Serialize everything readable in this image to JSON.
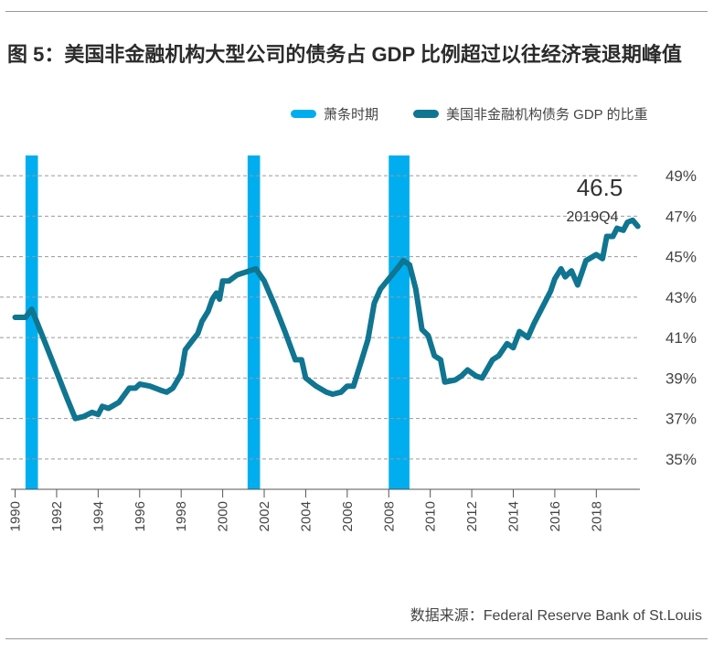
{
  "figure": {
    "title": "图 5：美国非金融机构大型公司的债务占 GDP 比例超过以往经济衰退期峰值",
    "source": "数据来源：Federal Reserve Bank of St.Louis"
  },
  "legend": [
    {
      "label": "萧条时期",
      "color": "#00aeef"
    },
    {
      "label": "美国非金融机构债务 GDP 的比重",
      "color": "#0f7590"
    }
  ],
  "annotation": {
    "value": "46.5",
    "period": "2019Q4"
  },
  "chart_data": {
    "type": "line",
    "title": "图 5：美国非金融机构大型公司的债务占 GDP 比例超过以往经济衰退期峰值",
    "xlabel": "",
    "ylabel": "",
    "xlim": [
      1989.8,
      2020.1
    ],
    "ylim": [
      33.5,
      50
    ],
    "x_ticks": [
      1990,
      1992,
      1994,
      1996,
      1998,
      2000,
      2002,
      2004,
      2006,
      2008,
      2010,
      2012,
      2014,
      2016,
      2018
    ],
    "x_tick_labels": [
      "1990",
      "1992",
      "1994",
      "1996",
      "1998",
      "2000",
      "2002",
      "2004",
      "2006",
      "2008",
      "2010",
      "2012",
      "2014",
      "2016",
      "2018"
    ],
    "y_ticks": [
      35,
      37,
      39,
      41,
      43,
      45,
      47,
      49
    ],
    "y_tick_labels": [
      "35%",
      "37%",
      "39%",
      "41%",
      "43%",
      "45%",
      "47%",
      "49%"
    ],
    "grid": "horizontal dashed",
    "recessions": [
      {
        "start": 1990.5,
        "end": 1991.1
      },
      {
        "start": 2001.2,
        "end": 2001.8
      },
      {
        "start": 2008.0,
        "end": 2009.0
      }
    ],
    "series": [
      {
        "name": "美国非金融机构债务 GDP 的比重",
        "color": "#0f7590",
        "points": [
          [
            1990.0,
            42.0
          ],
          [
            1990.5,
            42.0
          ],
          [
            1990.8,
            42.4
          ],
          [
            1991.0,
            41.9
          ],
          [
            1991.5,
            40.6
          ],
          [
            1992.0,
            39.3
          ],
          [
            1992.5,
            38.0
          ],
          [
            1992.9,
            37.0
          ],
          [
            1993.3,
            37.1
          ],
          [
            1993.7,
            37.3
          ],
          [
            1994.0,
            37.2
          ],
          [
            1994.2,
            37.6
          ],
          [
            1994.5,
            37.5
          ],
          [
            1995.0,
            37.8
          ],
          [
            1995.5,
            38.5
          ],
          [
            1995.8,
            38.5
          ],
          [
            1996.0,
            38.7
          ],
          [
            1996.5,
            38.6
          ],
          [
            1997.0,
            38.4
          ],
          [
            1997.3,
            38.3
          ],
          [
            1997.6,
            38.5
          ],
          [
            1998.0,
            39.2
          ],
          [
            1998.2,
            40.4
          ],
          [
            1998.5,
            40.8
          ],
          [
            1998.8,
            41.2
          ],
          [
            1999.0,
            41.8
          ],
          [
            1999.3,
            42.3
          ],
          [
            1999.5,
            42.9
          ],
          [
            1999.7,
            43.2
          ],
          [
            1999.85,
            42.9
          ],
          [
            2000.0,
            43.8
          ],
          [
            2000.3,
            43.8
          ],
          [
            2000.7,
            44.1
          ],
          [
            2001.0,
            44.2
          ],
          [
            2001.3,
            44.3
          ],
          [
            2001.6,
            44.4
          ],
          [
            2002.0,
            43.8
          ],
          [
            2002.5,
            42.6
          ],
          [
            2003.0,
            41.3
          ],
          [
            2003.5,
            39.9
          ],
          [
            2003.8,
            39.9
          ],
          [
            2004.0,
            39.0
          ],
          [
            2004.5,
            38.6
          ],
          [
            2005.0,
            38.3
          ],
          [
            2005.3,
            38.2
          ],
          [
            2005.7,
            38.3
          ],
          [
            2006.0,
            38.6
          ],
          [
            2006.3,
            38.6
          ],
          [
            2006.7,
            39.9
          ],
          [
            2007.0,
            40.9
          ],
          [
            2007.3,
            42.7
          ],
          [
            2007.6,
            43.4
          ],
          [
            2008.0,
            43.9
          ],
          [
            2008.4,
            44.4
          ],
          [
            2008.7,
            44.8
          ],
          [
            2009.0,
            44.6
          ],
          [
            2009.3,
            43.4
          ],
          [
            2009.6,
            41.4
          ],
          [
            2009.9,
            41.1
          ],
          [
            2010.2,
            40.1
          ],
          [
            2010.5,
            39.9
          ],
          [
            2010.7,
            38.8
          ],
          [
            2011.2,
            38.9
          ],
          [
            2011.5,
            39.1
          ],
          [
            2011.8,
            39.4
          ],
          [
            2012.2,
            39.1
          ],
          [
            2012.5,
            39.0
          ],
          [
            2013.0,
            39.9
          ],
          [
            2013.3,
            40.1
          ],
          [
            2013.7,
            40.7
          ],
          [
            2014.0,
            40.5
          ],
          [
            2014.3,
            41.3
          ],
          [
            2014.7,
            41.0
          ],
          [
            2015.0,
            41.7
          ],
          [
            2015.5,
            42.7
          ],
          [
            2015.8,
            43.3
          ],
          [
            2016.0,
            43.9
          ],
          [
            2016.3,
            44.4
          ],
          [
            2016.5,
            44.0
          ],
          [
            2016.8,
            44.3
          ],
          [
            2017.1,
            43.6
          ],
          [
            2017.5,
            44.8
          ],
          [
            2018.0,
            45.1
          ],
          [
            2018.3,
            44.9
          ],
          [
            2018.5,
            46.0
          ],
          [
            2018.8,
            46.0
          ],
          [
            2019.0,
            46.4
          ],
          [
            2019.3,
            46.3
          ],
          [
            2019.5,
            46.7
          ],
          [
            2019.75,
            46.8
          ],
          [
            2020.0,
            46.5
          ]
        ]
      }
    ]
  }
}
